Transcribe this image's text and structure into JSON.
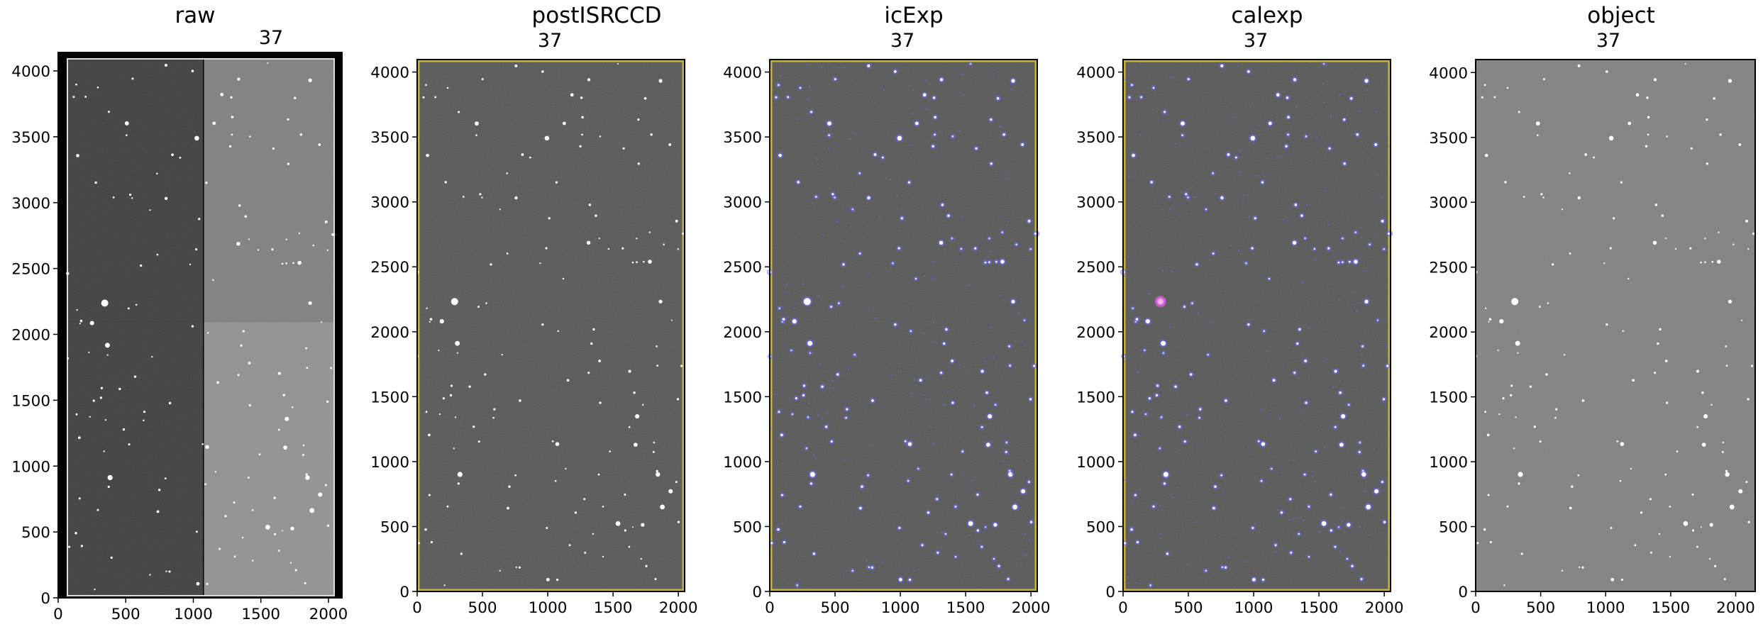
{
  "colors": {
    "background": "#ffffff",
    "axis": "#000000",
    "mask_border": "#c9b23a",
    "detection_mask": "#6e6eff",
    "interpolated_mask": "#e05ad8"
  },
  "panels": [
    {
      "id": "raw",
      "title": "raw",
      "ccd_label": "37",
      "image": {
        "style": "raw-four-amplifiers",
        "amp_levels": [
          "dark",
          "medium",
          "dark",
          "light"
        ],
        "overscan_strips": true,
        "mask_overlay": "none"
      },
      "xlim": [
        0,
        2100
      ],
      "ylim": [
        0,
        4140
      ],
      "xticks": [
        "0",
        "500",
        "1000",
        "1500",
        "2000"
      ],
      "yticks": [
        "0",
        "500",
        "1000",
        "1500",
        "2000",
        "2500",
        "3000",
        "3500",
        "4000"
      ]
    },
    {
      "id": "postISRCCD",
      "title": "postISRCCD",
      "ccd_label": "37",
      "image": {
        "style": "uniform-sky",
        "mask_overlay": "edge-border"
      },
      "xlim": [
        0,
        2048
      ],
      "ylim": [
        0,
        4096
      ],
      "xticks": [
        "0",
        "500",
        "1000",
        "1500",
        "2000"
      ],
      "yticks": [
        "0",
        "500",
        "1000",
        "1500",
        "2000",
        "2500",
        "3000",
        "3500",
        "4000"
      ]
    },
    {
      "id": "icExp",
      "title": "icExp",
      "ccd_label": "37",
      "image": {
        "style": "uniform-sky",
        "mask_overlay": "detections-blue"
      },
      "xlim": [
        0,
        2048
      ],
      "ylim": [
        0,
        4096
      ],
      "xticks": [
        "0",
        "500",
        "1000",
        "1500",
        "2000"
      ],
      "yticks": [
        "0",
        "500",
        "1000",
        "1500",
        "2000",
        "2500",
        "3000",
        "3500",
        "4000"
      ]
    },
    {
      "id": "calexp",
      "title": "calexp",
      "ccd_label": "37",
      "image": {
        "style": "uniform-sky",
        "mask_overlay": "detections-blue-with-interpolated"
      },
      "xlim": [
        0,
        2048
      ],
      "ylim": [
        0,
        4096
      ],
      "xticks": [
        "0",
        "500",
        "1000",
        "1500",
        "2000"
      ],
      "yticks": [
        "0",
        "500",
        "1000",
        "1500",
        "2000",
        "2500",
        "3000",
        "3500",
        "4000"
      ]
    },
    {
      "id": "object",
      "title": "object",
      "ccd_label": "37",
      "image": {
        "style": "flat-gray-sky",
        "mask_overlay": "none"
      },
      "xlim": [
        0,
        2150
      ],
      "ylim": [
        0,
        4100
      ],
      "xticks": [
        "0",
        "500",
        "1000",
        "1500",
        "2000"
      ],
      "yticks": [
        "0",
        "500",
        "1000",
        "1500",
        "2000",
        "2500",
        "3000",
        "3500",
        "4000"
      ]
    }
  ]
}
